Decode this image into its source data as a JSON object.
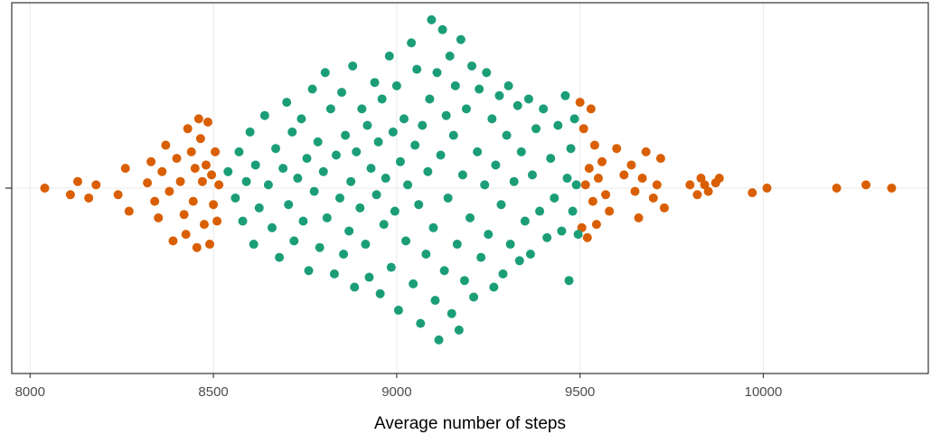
{
  "chart_data": {
    "type": "scatter",
    "subtype": "beeswarm",
    "title": "",
    "xlabel": "Average number of steps",
    "ylabel": "",
    "xlim": [
      7950,
      10450
    ],
    "x_ticks": [
      8000,
      8500,
      9000,
      9500,
      10000
    ],
    "x_tick_labels": [
      "8000",
      "8500",
      "9000",
      "9500",
      "10000"
    ],
    "grid": true,
    "legend": "none",
    "colors": {
      "inner": "#1b9e77",
      "outer": "#d95f02",
      "panel_border": "#333333",
      "grid": "#ebebeb"
    },
    "series": [
      {
        "color_key": "outer",
        "points": [
          [
            8040,
            0
          ],
          [
            8110,
            -0.1
          ],
          [
            8130,
            0.1
          ],
          [
            8160,
            -0.15
          ],
          [
            8180,
            0.05
          ],
          [
            8240,
            -0.1
          ],
          [
            8260,
            0.3
          ],
          [
            8270,
            -0.35
          ],
          [
            8320,
            0.08
          ],
          [
            8330,
            0.4
          ],
          [
            8340,
            -0.2
          ],
          [
            8350,
            -0.45
          ],
          [
            8360,
            0.25
          ],
          [
            8370,
            0.65
          ],
          [
            8380,
            -0.05
          ],
          [
            8390,
            -0.8
          ],
          [
            8400,
            0.45
          ],
          [
            8410,
            0.1
          ],
          [
            8420,
            -0.4
          ],
          [
            8425,
            -0.7
          ],
          [
            8430,
            0.9
          ],
          [
            8440,
            0.55
          ],
          [
            8445,
            -0.2
          ],
          [
            8450,
            0.3
          ],
          [
            8455,
            -0.9
          ],
          [
            8460,
            1.05
          ],
          [
            8465,
            0.75
          ],
          [
            8470,
            0.1
          ],
          [
            8475,
            -0.55
          ],
          [
            8480,
            0.35
          ],
          [
            8485,
            1.0
          ],
          [
            8490,
            -0.85
          ],
          [
            8495,
            0.2
          ],
          [
            8500,
            -0.25
          ],
          [
            8505,
            0.55
          ],
          [
            8510,
            -0.5
          ],
          [
            8515,
            0.05
          ],
          [
            9500,
            1.3
          ],
          [
            9505,
            -0.6
          ],
          [
            9510,
            0.9
          ],
          [
            9515,
            0.05
          ],
          [
            9520,
            -0.75
          ],
          [
            9525,
            0.3
          ],
          [
            9530,
            1.2
          ],
          [
            9535,
            -0.2
          ],
          [
            9540,
            0.65
          ],
          [
            9545,
            -0.55
          ],
          [
            9550,
            0.15
          ],
          [
            9560,
            0.4
          ],
          [
            9570,
            -0.1
          ],
          [
            9580,
            -0.35
          ],
          [
            9600,
            0.6
          ],
          [
            9620,
            0.2
          ],
          [
            9640,
            0.35
          ],
          [
            9650,
            -0.05
          ],
          [
            9660,
            -0.45
          ],
          [
            9670,
            0.15
          ],
          [
            9680,
            0.55
          ],
          [
            9700,
            -0.15
          ],
          [
            9710,
            0.05
          ],
          [
            9720,
            0.45
          ],
          [
            9730,
            -0.3
          ],
          [
            9800,
            0.05
          ],
          [
            9820,
            -0.1
          ],
          [
            9830,
            0.15
          ],
          [
            9840,
            0.05
          ],
          [
            9850,
            -0.05
          ],
          [
            9870,
            0.08
          ],
          [
            9880,
            0.15
          ],
          [
            9970,
            -0.07
          ],
          [
            10010,
            0
          ],
          [
            10200,
            0
          ],
          [
            10280,
            0.05
          ],
          [
            10350,
            0
          ]
        ]
      },
      {
        "color_key": "inner",
        "points": [
          [
            8540,
            0.25
          ],
          [
            8560,
            -0.15
          ],
          [
            8570,
            0.55
          ],
          [
            8580,
            -0.5
          ],
          [
            8590,
            0.1
          ],
          [
            8600,
            0.85
          ],
          [
            8610,
            -0.85
          ],
          [
            8615,
            0.35
          ],
          [
            8625,
            -0.3
          ],
          [
            8640,
            1.1
          ],
          [
            8650,
            0.05
          ],
          [
            8660,
            -0.6
          ],
          [
            8670,
            0.6
          ],
          [
            8680,
            -1.05
          ],
          [
            8690,
            0.3
          ],
          [
            8700,
            1.3
          ],
          [
            8705,
            -0.25
          ],
          [
            8715,
            0.85
          ],
          [
            8720,
            -0.8
          ],
          [
            8730,
            0.15
          ],
          [
            8740,
            1.05
          ],
          [
            8745,
            -0.5
          ],
          [
            8755,
            0.45
          ],
          [
            8760,
            -1.25
          ],
          [
            8770,
            1.5
          ],
          [
            8775,
            -0.05
          ],
          [
            8785,
            0.7
          ],
          [
            8790,
            -0.9
          ],
          [
            8800,
            0.25
          ],
          [
            8805,
            1.75
          ],
          [
            8810,
            -0.45
          ],
          [
            8820,
            1.2
          ],
          [
            8830,
            -1.3
          ],
          [
            8835,
            0.5
          ],
          [
            8845,
            -0.15
          ],
          [
            8850,
            1.45
          ],
          [
            8855,
            -1.0
          ],
          [
            8860,
            0.8
          ],
          [
            8870,
            -0.65
          ],
          [
            8875,
            0.1
          ],
          [
            8880,
            1.85
          ],
          [
            8885,
            -1.5
          ],
          [
            8890,
            0.55
          ],
          [
            8900,
            -0.3
          ],
          [
            8905,
            1.2
          ],
          [
            8915,
            -0.85
          ],
          [
            8920,
            0.95
          ],
          [
            8925,
            -1.35
          ],
          [
            8930,
            0.3
          ],
          [
            8940,
            1.6
          ],
          [
            8945,
            -0.1
          ],
          [
            8950,
            0.7
          ],
          [
            8955,
            -1.6
          ],
          [
            8960,
            1.35
          ],
          [
            8965,
            -0.55
          ],
          [
            8970,
            0.15
          ],
          [
            8980,
            2.0
          ],
          [
            8985,
            -1.2
          ],
          [
            8990,
            0.85
          ],
          [
            8995,
            -0.35
          ],
          [
            9000,
            1.55
          ],
          [
            9005,
            -1.85
          ],
          [
            9010,
            0.4
          ],
          [
            9020,
            1.05
          ],
          [
            9025,
            -0.8
          ],
          [
            9030,
            0.05
          ],
          [
            9040,
            2.2
          ],
          [
            9045,
            -1.45
          ],
          [
            9050,
            0.65
          ],
          [
            9055,
            1.8
          ],
          [
            9060,
            -0.25
          ],
          [
            9065,
            -2.05
          ],
          [
            9070,
            0.95
          ],
          [
            9080,
            -1.0
          ],
          [
            9085,
            0.25
          ],
          [
            9090,
            1.35
          ],
          [
            9095,
            2.55
          ],
          [
            9100,
            -0.6
          ],
          [
            9105,
            -1.7
          ],
          [
            9110,
            1.75
          ],
          [
            9115,
            -2.3
          ],
          [
            9120,
            0.5
          ],
          [
            9125,
            2.4
          ],
          [
            9130,
            -1.25
          ],
          [
            9135,
            1.1
          ],
          [
            9140,
            -0.15
          ],
          [
            9145,
            2.0
          ],
          [
            9150,
            -1.9
          ],
          [
            9155,
            0.8
          ],
          [
            9160,
            1.55
          ],
          [
            9165,
            -0.85
          ],
          [
            9170,
            -2.15
          ],
          [
            9175,
            2.25
          ],
          [
            9180,
            0.2
          ],
          [
            9185,
            -1.4
          ],
          [
            9190,
            1.2
          ],
          [
            9200,
            -0.45
          ],
          [
            9205,
            1.85
          ],
          [
            9210,
            -1.65
          ],
          [
            9220,
            0.55
          ],
          [
            9225,
            1.5
          ],
          [
            9230,
            -1.05
          ],
          [
            9240,
            0.05
          ],
          [
            9245,
            1.75
          ],
          [
            9250,
            -0.7
          ],
          [
            9260,
            1.05
          ],
          [
            9265,
            -1.5
          ],
          [
            9270,
            0.35
          ],
          [
            9280,
            1.4
          ],
          [
            9285,
            -0.25
          ],
          [
            9290,
            -1.3
          ],
          [
            9300,
            0.8
          ],
          [
            9305,
            1.55
          ],
          [
            9310,
            -0.85
          ],
          [
            9320,
            0.1
          ],
          [
            9330,
            1.25
          ],
          [
            9335,
            -1.1
          ],
          [
            9340,
            0.55
          ],
          [
            9350,
            -0.5
          ],
          [
            9360,
            1.35
          ],
          [
            9365,
            -1.0
          ],
          [
            9370,
            0.2
          ],
          [
            9380,
            0.9
          ],
          [
            9390,
            -0.35
          ],
          [
            9400,
            1.2
          ],
          [
            9410,
            -0.75
          ],
          [
            9420,
            0.45
          ],
          [
            9430,
            -0.15
          ],
          [
            9440,
            0.95
          ],
          [
            9450,
            -0.65
          ],
          [
            9460,
            1.4
          ],
          [
            9465,
            0.15
          ],
          [
            9470,
            -1.4
          ],
          [
            9475,
            0.6
          ],
          [
            9480,
            -0.35
          ],
          [
            9485,
            1.05
          ],
          [
            9490,
            0.05
          ],
          [
            9495,
            -0.7
          ]
        ]
      }
    ]
  }
}
